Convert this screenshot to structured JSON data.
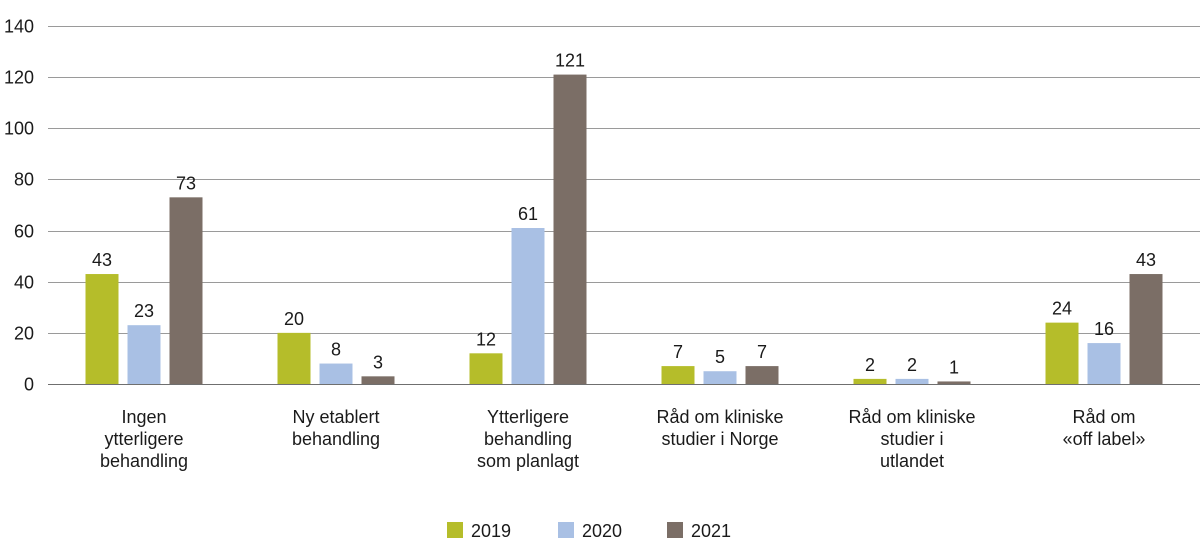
{
  "chart_data": {
    "type": "bar",
    "title": "",
    "xlabel": "",
    "ylabel": "",
    "ylim": [
      0,
      140
    ],
    "yticks": [
      0,
      20,
      40,
      60,
      80,
      100,
      120,
      140
    ],
    "grid": true,
    "legend_position": "bottom",
    "categories": [
      "Ingen ytterligere behandling",
      "Ny etablert behandling",
      "Ytterligere behandling som planlagt",
      "Råd om kliniske studier i Norge",
      "Råd om kliniske studier i utlandet",
      "Råd om «off label»"
    ],
    "category_lines": [
      [
        "Ingen",
        "ytterligere",
        "behandling"
      ],
      [
        "Ny etablert",
        "behandling"
      ],
      [
        "Ytterligere",
        "behandling",
        "som planlagt"
      ],
      [
        "Råd om kliniske",
        "studier i Norge"
      ],
      [
        "Råd om kliniske",
        "studier i",
        "utlandet"
      ],
      [
        "Råd om",
        "«off label»"
      ]
    ],
    "series": [
      {
        "name": "2019",
        "color": "#b5bd2a",
        "values": [
          43,
          20,
          12,
          7,
          2,
          24
        ]
      },
      {
        "name": "2020",
        "color": "#a9c0e4",
        "values": [
          23,
          8,
          61,
          5,
          2,
          16
        ]
      },
      {
        "name": "2021",
        "color": "#7b6e66",
        "values": [
          73,
          3,
          121,
          7,
          1,
          43
        ]
      }
    ]
  }
}
